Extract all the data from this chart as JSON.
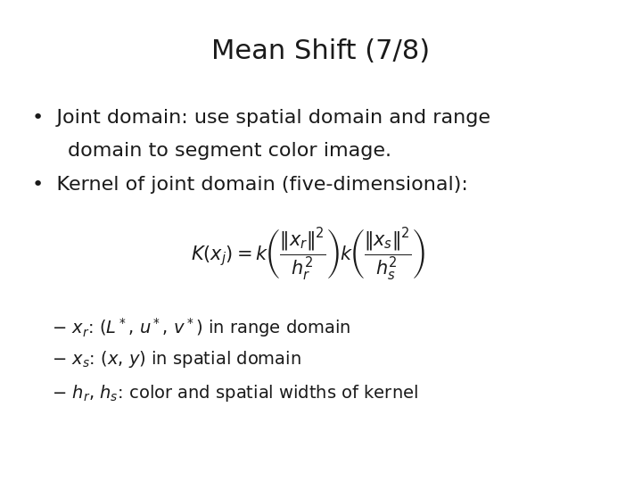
{
  "title": "Mean Shift (7/8)",
  "title_fontsize": 22,
  "background_color": "#ffffff",
  "text_color": "#1a1a1a",
  "bullet1_line1": "Joint domain: use spatial domain and range",
  "bullet1_line2": "domain to segment color image.",
  "bullet2": "Kernel of joint domain (five-dimensional):",
  "bullet_fontsize": 16,
  "sub_fontsize": 14,
  "formula_fontsize": 15
}
